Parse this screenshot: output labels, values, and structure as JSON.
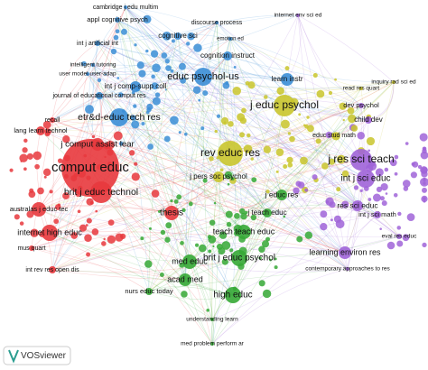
{
  "nodes": [
    {
      "label": "cambridge j edu multim"
    },
    {
      "label": "appl cognitive psych"
    },
    {
      "label": "discourse process"
    },
    {
      "label": "internet env sci ed"
    },
    {
      "label": "cognitive sci"
    },
    {
      "label": "emotion ed"
    },
    {
      "label": "int j artificial int"
    },
    {
      "label": "cognition instruct"
    },
    {
      "label": "intelligent tutoring"
    },
    {
      "label": "user model user-adap"
    },
    {
      "label": "educ psychol-us"
    },
    {
      "label": "learn instr"
    },
    {
      "label": "inquiry rad sci ed"
    },
    {
      "label": "read res quart"
    },
    {
      "label": "int j comp-supp coll"
    },
    {
      "label": "journal of educational comput res"
    },
    {
      "label": "j educ psychol"
    },
    {
      "label": "etr&d-educ tech res"
    },
    {
      "label": "dev psychol"
    },
    {
      "label": "recall"
    },
    {
      "label": "lang learn technol"
    },
    {
      "label": "child dev"
    },
    {
      "label": "j comput assist lear"
    },
    {
      "label": "educ stud math"
    },
    {
      "label": "rev educ res"
    },
    {
      "label": "j res sci teach"
    },
    {
      "label": "comput educ"
    },
    {
      "label": "j pers soc psychol"
    },
    {
      "label": "int j sci educ"
    },
    {
      "label": "brit j educ technol"
    },
    {
      "label": "j educ res"
    },
    {
      "label": "res sci educ"
    },
    {
      "label": "thesis"
    },
    {
      "label": "australas j educ tec"
    },
    {
      "label": "int j sci math"
    },
    {
      "label": "j teach educ"
    },
    {
      "label": "internet high educ"
    },
    {
      "label": "teach teach educ"
    },
    {
      "label": "eval res educ"
    },
    {
      "label": "mus quart"
    },
    {
      "label": "learning environ res"
    },
    {
      "label": "brit j educ psychol"
    },
    {
      "label": "med educ"
    },
    {
      "label": "contemporary approaches to res"
    },
    {
      "label": "int rev res open dis"
    },
    {
      "label": "acad med"
    },
    {
      "label": "nurs educ today"
    },
    {
      "label": "high educ"
    },
    {
      "label": "understanding learn"
    },
    {
      "label": "med problem perform ar"
    }
  ],
  "logo": "VOSviewer"
}
